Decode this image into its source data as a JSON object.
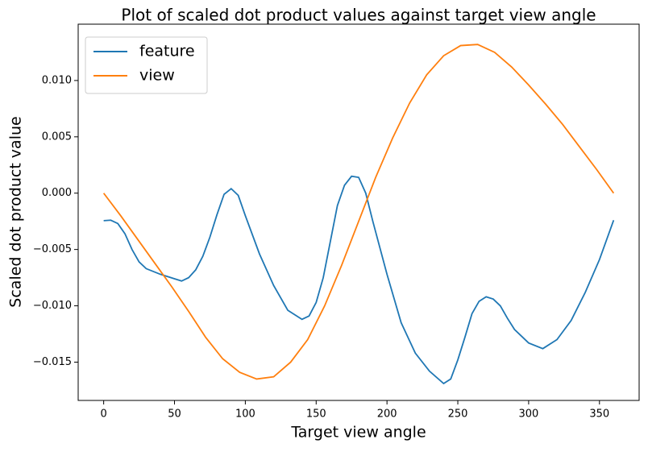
{
  "chart_data": {
    "type": "line",
    "title": "Plot of scaled dot product values against target view angle",
    "xlabel": "Target view angle",
    "ylabel": "Scaled dot product value",
    "xlim": [
      -18,
      378
    ],
    "xticks": [
      0,
      50,
      100,
      150,
      200,
      250,
      300,
      350
    ],
    "ylim": [
      -0.0184,
      0.015
    ],
    "yticks": [
      {
        "value": -0.015,
        "label": "−0.015"
      },
      {
        "value": -0.01,
        "label": "−0.010"
      },
      {
        "value": -0.005,
        "label": "−0.005"
      },
      {
        "value": 0,
        "label": "0.000"
      },
      {
        "value": 0.005,
        "label": "0.005"
      },
      {
        "value": 0.01,
        "label": "0.010"
      }
    ],
    "grid": false,
    "legend": "upper-left",
    "series": [
      {
        "name": "feature",
        "color": "#1f77b4",
        "x": [
          0,
          5,
          10,
          15,
          20,
          25,
          30,
          40,
          50,
          55,
          60,
          65,
          70,
          75,
          80,
          85,
          90,
          95,
          100,
          110,
          120,
          130,
          140,
          145,
          150,
          155,
          160,
          165,
          170,
          175,
          180,
          185,
          190,
          200,
          210,
          220,
          230,
          240,
          245,
          250,
          255,
          260,
          265,
          270,
          275,
          280,
          285,
          290,
          300,
          310,
          320,
          330,
          340,
          350,
          360
        ],
        "values": [
          -0.00244,
          -0.0024,
          -0.0027,
          -0.0036,
          -0.005,
          -0.0061,
          -0.0067,
          -0.0072,
          -0.0076,
          -0.0078,
          -0.0075,
          -0.0068,
          -0.0056,
          -0.0039,
          -0.0019,
          -0.0001,
          0.0004,
          -0.0002,
          -0.002,
          -0.0054,
          -0.0082,
          -0.0104,
          -0.0112,
          -0.0109,
          -0.0097,
          -0.0075,
          -0.0043,
          -0.0011,
          0.0007,
          0.0015,
          0.0014,
          0.0,
          -0.0025,
          -0.0072,
          -0.0115,
          -0.0142,
          -0.0158,
          -0.0169,
          -0.0165,
          -0.0148,
          -0.0128,
          -0.0107,
          -0.0096,
          -0.0092,
          -0.0094,
          -0.01,
          -0.0111,
          -0.0121,
          -0.0133,
          -0.0138,
          -0.013,
          -0.0113,
          -0.0088,
          -0.0059,
          -0.0024
        ]
      },
      {
        "name": "view",
        "color": "#ff7f0e",
        "x": [
          0,
          12,
          24,
          36,
          48,
          60,
          72,
          84,
          96,
          108,
          120,
          132,
          144,
          156,
          168,
          180,
          192,
          204,
          216,
          228,
          240,
          252,
          264,
          276,
          288,
          300,
          312,
          324,
          336,
          348,
          360
        ],
        "values": [
          0,
          -0.002,
          -0.0041,
          -0.0062,
          -0.0083,
          -0.0105,
          -0.0128,
          -0.0147,
          -0.0159,
          -0.0165,
          -0.0163,
          -0.015,
          -0.013,
          -0.01,
          -0.0064,
          -0.0025,
          0.0014,
          0.0049,
          0.008,
          0.0105,
          0.0122,
          0.0131,
          0.0132,
          0.0125,
          0.0112,
          0.0096,
          0.0079,
          0.0061,
          0.0041,
          0.0021,
          0
        ]
      }
    ]
  }
}
